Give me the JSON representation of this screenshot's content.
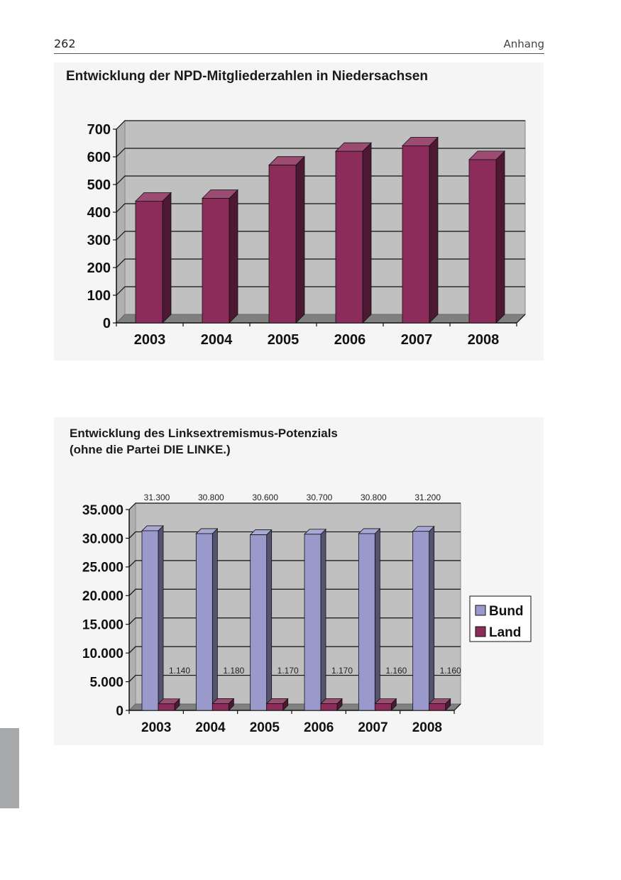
{
  "page": {
    "number": "262",
    "section": "Anhang"
  },
  "charts": {
    "npd": {
      "title": "Entwicklung der NPD-Mitgliederzahlen in Niedersachsen"
    },
    "links": {
      "title_line1": "Entwicklung des Linksextremismus-Potenzials",
      "title_line2": "(ohne die Partei DIE LINKE.)"
    }
  },
  "chart_data": [
    {
      "type": "bar",
      "title": "Entwicklung der NPD-Mitgliederzahlen in Niedersachsen",
      "categories": [
        "2003",
        "2004",
        "2005",
        "2006",
        "2007",
        "2008"
      ],
      "series": [
        {
          "values": [
            440,
            450,
            570,
            620,
            640,
            590
          ],
          "color": "#8b2c5a"
        }
      ],
      "ylim": [
        0,
        700
      ],
      "yticks": [
        0,
        100,
        200,
        300,
        400,
        500,
        600,
        700
      ],
      "ytick_labels": [
        "0",
        "100",
        "200",
        "300",
        "400",
        "500",
        "600",
        "700"
      ],
      "xlabel": "",
      "ylabel": "",
      "grid": true,
      "three_d": true,
      "plot_background": "#c0c0c0"
    },
    {
      "type": "bar",
      "title": "Entwicklung des Linksextremismus-Potenzials (ohne die Partei DIE LINKE.)",
      "categories": [
        "2003",
        "2004",
        "2005",
        "2006",
        "2007",
        "2008"
      ],
      "series": [
        {
          "name": "Bund",
          "values": [
            31300,
            30800,
            30600,
            30700,
            30800,
            31200
          ],
          "labels": [
            "31.300",
            "30.800",
            "30.600",
            "30.700",
            "30.800",
            "31.200"
          ],
          "color": "#9999cc"
        },
        {
          "name": "Land",
          "values": [
            1140,
            1180,
            1170,
            1170,
            1160,
            1160
          ],
          "labels": [
            "1.140",
            "1.180",
            "1.170",
            "1.170",
            "1.160",
            "1.160"
          ],
          "color": "#8b2c5a"
        }
      ],
      "ylim": [
        0,
        35000
      ],
      "yticks": [
        0,
        5000,
        10000,
        15000,
        20000,
        25000,
        30000,
        35000
      ],
      "ytick_labels": [
        "0",
        "5.000",
        "10.000",
        "15.000",
        "20.000",
        "25.000",
        "30.000",
        "35.000"
      ],
      "xlabel": "",
      "ylabel": "",
      "grid": true,
      "three_d": true,
      "legend": "right",
      "plot_background": "#c0c0c0"
    }
  ]
}
